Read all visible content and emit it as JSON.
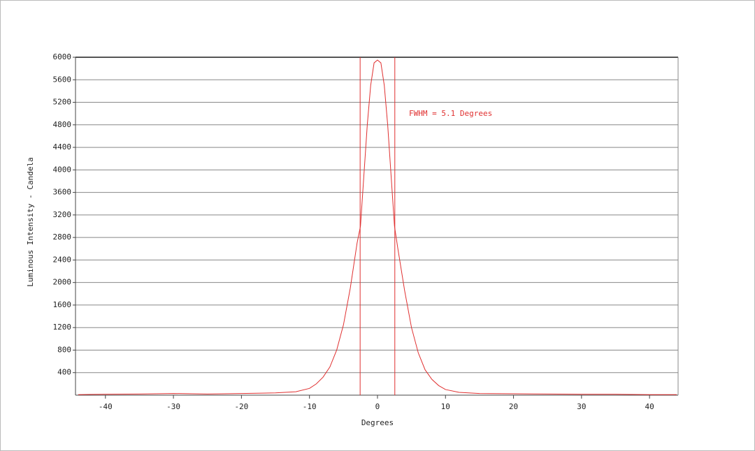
{
  "chart_data": {
    "type": "line",
    "x_label": "Degrees",
    "y_label": "Luminous Intensity - Candela",
    "annotation": "FWHM =  5.1 Degrees",
    "xlim": [
      -44.4,
      44.2
    ],
    "ylim": [
      0,
      6000
    ],
    "xticks": [
      -40,
      -30,
      -20,
      -10,
      0,
      10,
      20,
      30,
      40
    ],
    "yticks": [
      400,
      800,
      1200,
      1600,
      2000,
      2400,
      2800,
      3200,
      3600,
      4000,
      4400,
      4800,
      5200,
      5600,
      6000
    ],
    "grid": true,
    "markers": [
      -2.55,
      2.55
    ],
    "marker_color": "#e03030",
    "x": [
      -44,
      -40,
      -35,
      -30,
      -25,
      -20,
      -15,
      -12,
      -10,
      -9,
      -8,
      -7,
      -6,
      -5,
      -4,
      -3,
      -2.5,
      -2,
      -1.5,
      -1,
      -0.5,
      0,
      0.5,
      1,
      1.5,
      2,
      2.5,
      3,
      4,
      5,
      6,
      7,
      8,
      9,
      10,
      12,
      15,
      20,
      25,
      30,
      35,
      40,
      44
    ],
    "series": [
      {
        "name": "Luminous Intensity",
        "color": "#e03030",
        "values": [
          10,
          15,
          20,
          30,
          20,
          30,
          40,
          60,
          120,
          200,
          320,
          500,
          800,
          1250,
          1900,
          2700,
          3000,
          3900,
          4800,
          5500,
          5900,
          5950,
          5900,
          5500,
          4800,
          3900,
          3000,
          2600,
          1850,
          1200,
          750,
          450,
          280,
          170,
          100,
          50,
          30,
          25,
          20,
          15,
          15,
          10,
          10
        ]
      }
    ]
  }
}
